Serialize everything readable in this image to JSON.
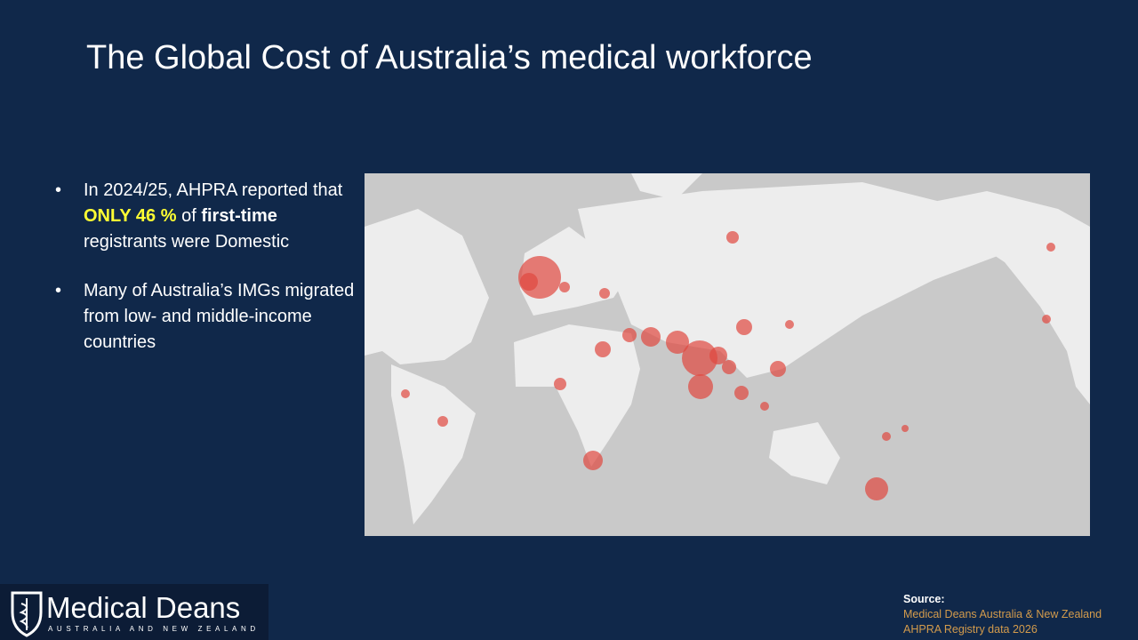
{
  "header": {
    "title": "The Global Cost of Australia’s medical workforce"
  },
  "bullets": [
    {
      "segments": [
        "In 2024/25, AHPRA reported that ",
        "ONLY 46 %",
        " of ",
        "first-time",
        " registrants were Domestic"
      ]
    },
    {
      "segments": [
        "Many of Australia’s IMGs migrated from low- and middle-income countries"
      ]
    }
  ],
  "source": {
    "label": "Source:",
    "lines": [
      "Medical Deans Australia & New Zealand",
      "AHPRA Registry data 2026"
    ]
  },
  "logo": {
    "name": "Medical Deans",
    "tagline": "AUSTRALIA AND NEW ZEALAND"
  }
}
